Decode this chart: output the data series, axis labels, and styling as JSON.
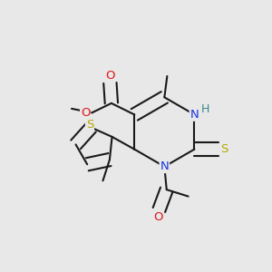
{
  "bg_color": "#e8e8e8",
  "bond_color": "#1a1a1a",
  "bw": 1.5,
  "dbo": 0.08,
  "atom_colors": {
    "N": "#1a35e0",
    "O": "#e01515",
    "S_thio": "#b8a800",
    "H": "#3a8888",
    "C": "#1a1a1a"
  },
  "afs": 9.5
}
